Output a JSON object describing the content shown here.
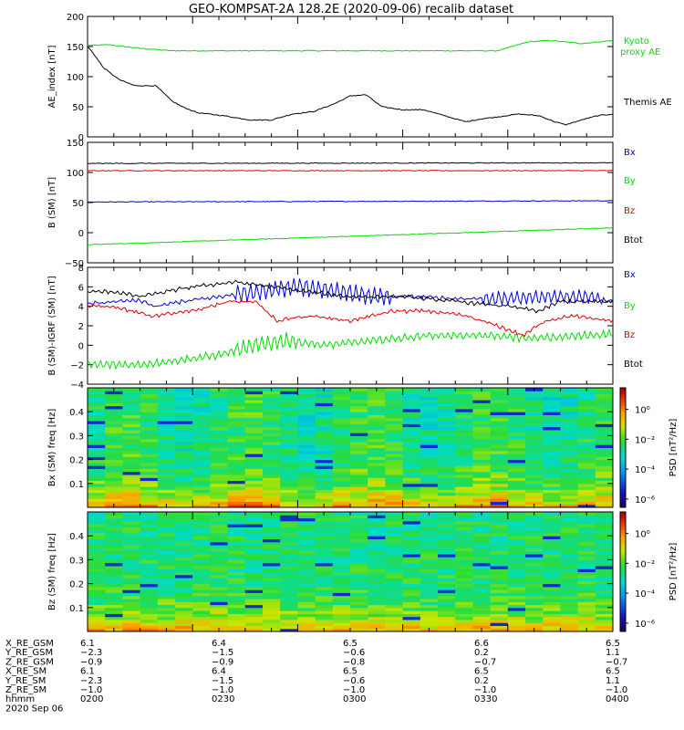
{
  "title": "GEO-KOMPSAT-2A 128.2E (2020-09-06) recalib dataset",
  "colors": {
    "black": "#000000",
    "green": "#00dd00",
    "blue": "#0000dd",
    "red": "#dd0000"
  },
  "chart_data": [
    {
      "type": "line",
      "ylabel": "AE_index [nT]",
      "ylim": [
        0,
        200
      ],
      "yticks": [
        "0",
        "50",
        "100",
        "150",
        "200"
      ],
      "series": [
        {
          "name": "Kyoto proxy AE",
          "color": "#00dd00",
          "x": [
            0,
            0.01,
            0.04,
            0.1,
            0.16,
            0.25,
            0.4,
            0.55,
            0.7,
            0.78,
            0.8,
            0.84,
            0.88,
            0.94,
            1.0
          ],
          "values": [
            152,
            152,
            153,
            147,
            143,
            143,
            143,
            143,
            143,
            143,
            148,
            158,
            160,
            155,
            160
          ]
        },
        {
          "name": "Themis AE",
          "color": "#000000",
          "x": [
            0,
            0.01,
            0.03,
            0.06,
            0.09,
            0.13,
            0.16,
            0.18,
            0.21,
            0.26,
            0.31,
            0.35,
            0.39,
            0.43,
            0.47,
            0.5,
            0.53,
            0.56,
            0.6,
            0.64,
            0.68,
            0.72,
            0.75,
            0.78,
            0.82,
            0.86,
            0.89,
            0.91,
            0.94,
            0.97,
            1.0
          ],
          "values": [
            150,
            140,
            115,
            95,
            85,
            85,
            60,
            50,
            40,
            35,
            28,
            28,
            38,
            42,
            55,
            68,
            70,
            50,
            45,
            45,
            35,
            25,
            30,
            33,
            38,
            35,
            25,
            20,
            28,
            35,
            38
          ]
        }
      ]
    },
    {
      "type": "line",
      "ylabel": "B (SM) [nT]",
      "ylim": [
        -50,
        150
      ],
      "yticks": [
        "−50",
        "0",
        "50",
        "100",
        "150"
      ],
      "series": [
        {
          "name": "Bx",
          "color": "#0000dd",
          "x": [
            0,
            1
          ],
          "values": [
            51,
            53
          ]
        },
        {
          "name": "By",
          "color": "#00dd00",
          "x": [
            0,
            1
          ],
          "values": [
            -20,
            8
          ]
        },
        {
          "name": "Bz",
          "color": "#dd0000",
          "x": [
            0,
            1
          ],
          "values": [
            103,
            103
          ]
        },
        {
          "name": "Btot",
          "color": "#000000",
          "x": [
            0,
            1
          ],
          "values": [
            115,
            116
          ]
        }
      ]
    },
    {
      "type": "line",
      "ylabel": "B (SM)-IGRF (SM) [nT]",
      "ylim": [
        -4,
        8
      ],
      "yticks": [
        "−4",
        "−2",
        "0",
        "2",
        "4",
        "6",
        "8"
      ],
      "series": [
        {
          "name": "Bx",
          "color": "#0000dd",
          "x": [
            0,
            0.05,
            0.1,
            0.13,
            0.18,
            0.25,
            0.32,
            0.4,
            0.48,
            0.55,
            0.62,
            0.7,
            0.8,
            0.88,
            0.95,
            1.0
          ],
          "values": [
            4.2,
            4.5,
            4.6,
            4.0,
            4.5,
            5.0,
            5.5,
            6.0,
            5.5,
            5.0,
            5.0,
            4.8,
            4.8,
            5.0,
            5.0,
            4.5
          ]
        },
        {
          "name": "By",
          "color": "#00dd00",
          "x": [
            0,
            0.1,
            0.18,
            0.25,
            0.32,
            0.38,
            0.45,
            0.55,
            0.65,
            0.75,
            0.85,
            0.92,
            1.0
          ],
          "values": [
            -2.0,
            -2.0,
            -1.5,
            -1.0,
            0.0,
            0.5,
            0.0,
            0.5,
            1.0,
            1.0,
            0.7,
            0.9,
            1.2
          ]
        },
        {
          "name": "Bz",
          "color": "#dd0000",
          "x": [
            0,
            0.05,
            0.12,
            0.2,
            0.27,
            0.32,
            0.36,
            0.42,
            0.5,
            0.58,
            0.65,
            0.72,
            0.78,
            0.83,
            0.87,
            0.92,
            1.0
          ],
          "values": [
            4.0,
            4.0,
            3.0,
            3.5,
            4.5,
            4.5,
            2.5,
            3.0,
            2.5,
            3.5,
            3.5,
            3.0,
            2.0,
            1.0,
            2.5,
            3.0,
            2.5
          ]
        },
        {
          "name": "Btot",
          "color": "#000000",
          "x": [
            0,
            0.05,
            0.1,
            0.15,
            0.2,
            0.28,
            0.35,
            0.42,
            0.5,
            0.6,
            0.7,
            0.8,
            0.86,
            0.9,
            0.95,
            1.0
          ],
          "values": [
            5.5,
            5.5,
            5.0,
            5.5,
            6.0,
            6.5,
            6.0,
            5.5,
            5.0,
            5.0,
            4.5,
            4.0,
            3.5,
            4.5,
            4.5,
            4.5
          ]
        }
      ]
    },
    {
      "type": "heatmap",
      "ylabel": "Bx (SM) freq [Hz]",
      "ylim": [
        0,
        0.5
      ],
      "yticks": [
        "0.1",
        "0.2",
        "0.3",
        "0.4"
      ],
      "colorbar": {
        "label": "PSD [nT²/Hz]",
        "ticks": [
          "10⁰",
          "10⁻²",
          "10⁻⁴",
          "10⁻⁶"
        ]
      }
    },
    {
      "type": "heatmap",
      "ylabel": "Bz (SM) freq [Hz]",
      "ylim": [
        0,
        0.5
      ],
      "yticks": [
        "0.1",
        "0.2",
        "0.3",
        "0.4"
      ],
      "colorbar": {
        "label": "PSD [nT²/Hz]",
        "ticks": [
          "10⁰",
          "10⁻²",
          "10⁻⁴",
          "10⁻⁶"
        ]
      }
    }
  ],
  "ephemeris": {
    "row_labels": [
      "X_RE_GSM",
      "Y_RE_GSM",
      "Z_RE_GSM",
      "X_RE_SM",
      "Y_RE_SM",
      "Z_RE_SM",
      "hhmm"
    ],
    "columns": [
      [
        "6.1",
        "−2.3",
        "−0.9",
        "6.1",
        "−2.3",
        "−1.0",
        "0200"
      ],
      [
        "6.4",
        "−1.5",
        "−0.9",
        "6.4",
        "−1.5",
        "−1.0",
        "0230"
      ],
      [
        "6.5",
        "−0.6",
        "−0.8",
        "6.5",
        "−0.6",
        "−1.0",
        "0300"
      ],
      [
        "6.6",
        "0.2",
        "−0.7",
        "6.5",
        "0.2",
        "−1.0",
        "0330"
      ],
      [
        "6.5",
        "1.1",
        "−0.7",
        "6.5",
        "1.1",
        "−1.0",
        "0400"
      ]
    ],
    "date": "2020 Sep 06"
  }
}
